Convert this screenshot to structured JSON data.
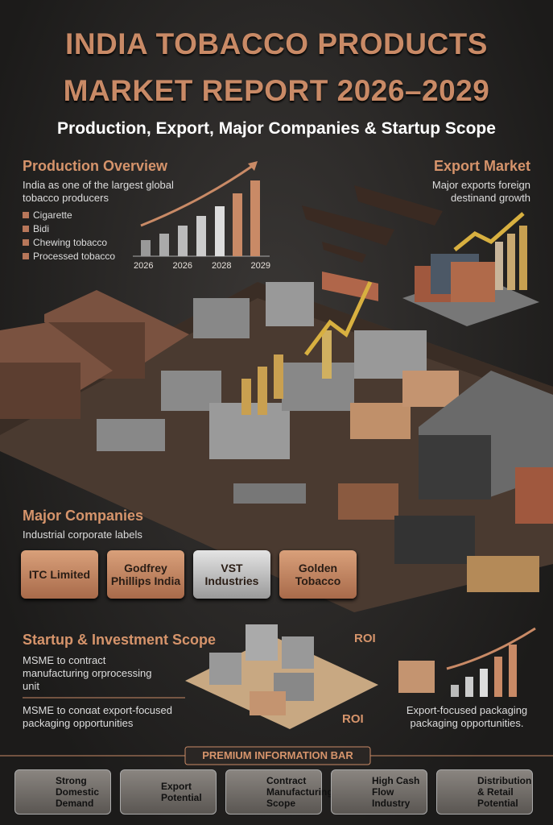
{
  "header": {
    "title_line1": "INDIA TOBACCO PRODUCTS",
    "title_line2": "MARKET REPORT 2026–2029",
    "subtitle": "Production, Export, Major Companies & Startup Scope"
  },
  "production": {
    "heading": "Production Overview",
    "text": "India as one of the largest global tobacco producers",
    "legend": [
      "Cigarette",
      "Bidi",
      "Chewing tobacco",
      "Processed tobacco"
    ],
    "years": [
      "2026",
      "2026",
      "2028",
      "2029"
    ]
  },
  "export": {
    "heading": "Export Market",
    "text": "Major exports foreign destinand growth"
  },
  "companies": {
    "heading": "Major Companies",
    "text": "Industrial corporate labels",
    "items": [
      "ITC Limited",
      "Godfrey Phillips India",
      "VST Industries",
      "Golden Tobacco"
    ]
  },
  "startup": {
    "heading": "Startup & Investment Scope",
    "text1": "MSME to contract manufacturing orprocessing unit",
    "text2": "MSME to conαat export-focused packaging opportunities",
    "roi": [
      "ROI",
      "ROI"
    ],
    "right_text": "Export-focused packaging packaging opportunities."
  },
  "info_bar": {
    "title": "PREMIUM INFORMATION BAR",
    "items": [
      "Strong Domestic Demand",
      "Export Potential",
      "Contract Manufacturing Scope",
      "High Cash Flow Industry",
      "Distribution & Retail Potential"
    ]
  }
}
